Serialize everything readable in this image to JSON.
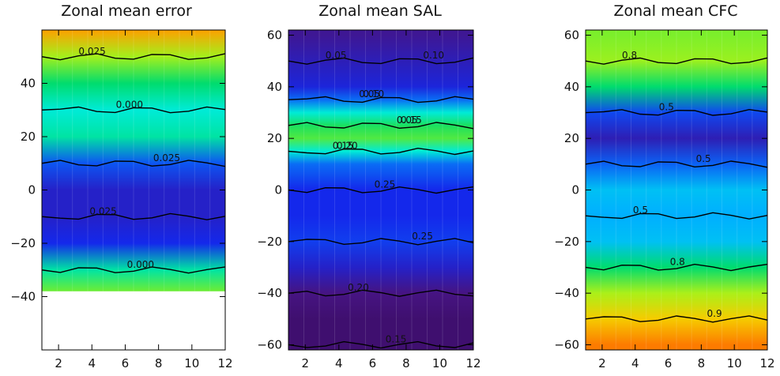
{
  "chart_data": [
    {
      "type": "heatmap",
      "title": "Zonal mean error",
      "x_ticks": [
        2,
        4,
        6,
        8,
        10,
        12
      ],
      "y_ticks": [
        -40,
        -20,
        0,
        20,
        40
      ],
      "xlim": [
        1,
        12
      ],
      "ylim": [
        -60,
        60
      ],
      "no_data_below_lat": -38,
      "colormap": "rainbow",
      "color_range": [
        -0.05,
        0.05
      ],
      "contour_labels": [
        "0.025",
        "0.000",
        "0.025",
        "0.025",
        "0.000"
      ],
      "lat_profile": [
        {
          "lat": -38,
          "value": 0.02
        },
        {
          "lat": -30,
          "value": 0.005
        },
        {
          "lat": -20,
          "value": -0.025
        },
        {
          "lat": -10,
          "value": -0.03
        },
        {
          "lat": 0,
          "value": -0.03
        },
        {
          "lat": 10,
          "value": -0.02
        },
        {
          "lat": 20,
          "value": 0.005
        },
        {
          "lat": 30,
          "value": 0.0
        },
        {
          "lat": 40,
          "value": 0.01
        },
        {
          "lat": 50,
          "value": 0.025
        },
        {
          "lat": 60,
          "value": 0.04
        }
      ]
    },
    {
      "type": "heatmap",
      "title": "Zonal mean   SAL",
      "x_ticks": [
        2,
        4,
        6,
        8,
        10,
        12
      ],
      "y_ticks": [
        -60,
        -40,
        -20,
        0,
        20,
        40,
        60
      ],
      "xlim": [
        1,
        12
      ],
      "ylim": [
        -62,
        62
      ],
      "colormap": "rainbow",
      "color_range": [
        0.0,
        0.4
      ],
      "contour_labels": [
        "0.05",
        "0.10",
        "0.15",
        "0.20",
        "0.25",
        "0.25",
        "0.20",
        "0.15",
        "0.10",
        "0.05",
        "0.05",
        "0.15"
      ],
      "lat_profile": [
        {
          "lat": -60,
          "value": 0.03
        },
        {
          "lat": -50,
          "value": 0.03
        },
        {
          "lat": -40,
          "value": 0.04
        },
        {
          "lat": -30,
          "value": 0.08
        },
        {
          "lat": -20,
          "value": 0.11
        },
        {
          "lat": -10,
          "value": 0.1
        },
        {
          "lat": 0,
          "value": 0.1
        },
        {
          "lat": 10,
          "value": 0.13
        },
        {
          "lat": 15,
          "value": 0.2
        },
        {
          "lat": 20,
          "value": 0.27
        },
        {
          "lat": 25,
          "value": 0.25
        },
        {
          "lat": 30,
          "value": 0.2
        },
        {
          "lat": 35,
          "value": 0.13
        },
        {
          "lat": 40,
          "value": 0.09
        },
        {
          "lat": 50,
          "value": 0.07
        },
        {
          "lat": 60,
          "value": 0.05
        }
      ]
    },
    {
      "type": "heatmap",
      "title": "Zonal mean   CFC",
      "x_ticks": [
        2,
        4,
        6,
        8,
        10,
        12
      ],
      "y_ticks": [
        -60,
        -40,
        -20,
        0,
        20,
        40,
        60
      ],
      "xlim": [
        1,
        12
      ],
      "ylim": [
        -62,
        62
      ],
      "colormap": "rainbow",
      "color_range": [
        0.3,
        1.0
      ],
      "contour_labels": [
        "0.8",
        "0.5",
        "0.5",
        "0.5",
        "0.8",
        "0.9"
      ],
      "lat_profile": [
        {
          "lat": -60,
          "value": 0.95
        },
        {
          "lat": -50,
          "value": 0.9
        },
        {
          "lat": -40,
          "value": 0.83
        },
        {
          "lat": -30,
          "value": 0.72
        },
        {
          "lat": -20,
          "value": 0.6
        },
        {
          "lat": -10,
          "value": 0.58
        },
        {
          "lat": 0,
          "value": 0.6
        },
        {
          "lat": 10,
          "value": 0.52
        },
        {
          "lat": 20,
          "value": 0.42
        },
        {
          "lat": 30,
          "value": 0.5
        },
        {
          "lat": 40,
          "value": 0.72
        },
        {
          "lat": 50,
          "value": 0.82
        },
        {
          "lat": 60,
          "value": 0.8
        }
      ]
    }
  ]
}
